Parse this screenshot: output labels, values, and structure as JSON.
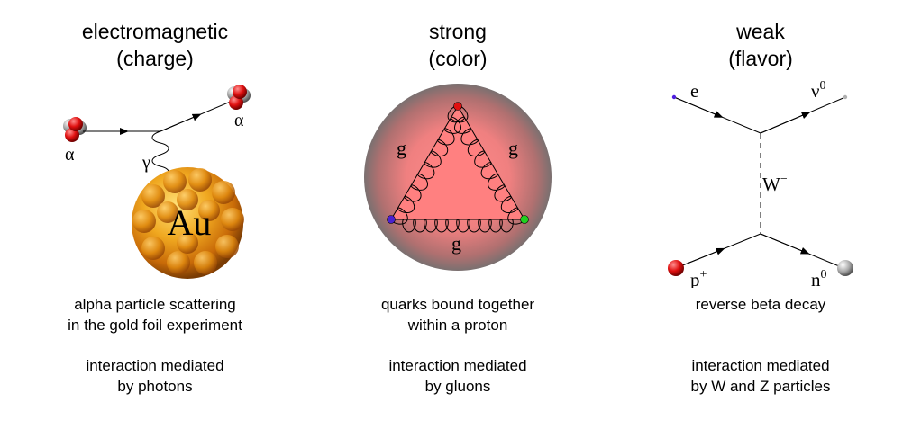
{
  "panels": {
    "electromagnetic": {
      "title_line1": "electromagnetic",
      "title_line2": "(charge)",
      "desc_line1": "alpha particle scattering",
      "desc_line2": "in the gold foil experiment",
      "mediator_line1": "interaction mediated",
      "mediator_line2": "by photons",
      "labels": {
        "alpha_in": "α",
        "alpha_out": "α",
        "photon": "γ",
        "nucleus": "Au"
      }
    },
    "strong": {
      "title_line1": "strong",
      "title_line2": "(color)",
      "desc_line1": "quarks bound together",
      "desc_line2": "within a proton",
      "mediator_line1": "interaction mediated",
      "mediator_line2": "by gluons",
      "labels": {
        "gluon_left": "g",
        "gluon_right": "g",
        "gluon_bottom": "g"
      },
      "quark_colors": {
        "top": "#e01010",
        "left": "#4a20d0",
        "right": "#20d020"
      }
    },
    "weak": {
      "title_line1": "weak",
      "title_line2": "(flavor)",
      "desc_line1": "reverse beta decay",
      "mediator_line1": "interaction mediated",
      "mediator_line2": "by W and Z particles",
      "labels": {
        "electron": "e",
        "electron_sup": "−",
        "neutrino": "ν",
        "neutrino_sup": "0",
        "boson": "W",
        "boson_sup": "−",
        "proton": "p",
        "proton_sup": "+",
        "neutron": "n",
        "neutron_sup": "0"
      }
    }
  }
}
